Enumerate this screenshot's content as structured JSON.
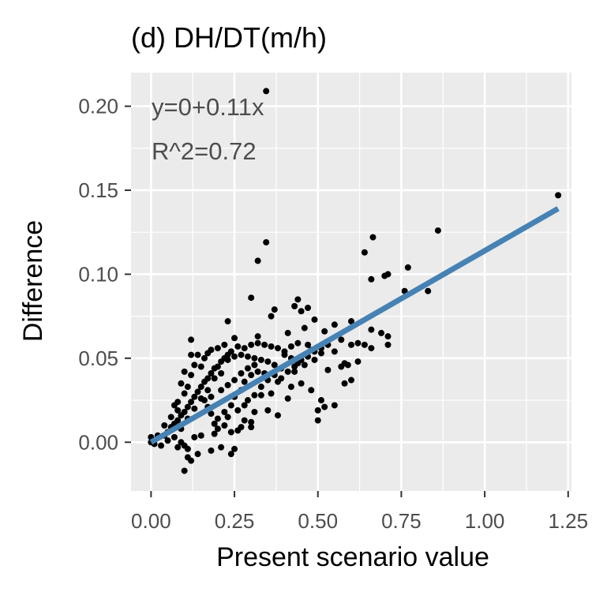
{
  "chart_data": {
    "type": "scatter",
    "title": "(d) DH/DT(m/h)",
    "xlabel": "Present scenario value",
    "ylabel": "Difference",
    "xlim": [
      -0.06,
      1.26
    ],
    "ylim": [
      -0.029,
      0.22
    ],
    "x_ticks": [
      0.0,
      0.25,
      0.5,
      0.75,
      1.0,
      1.25
    ],
    "x_tick_labels": [
      "0.00",
      "0.25",
      "0.50",
      "0.75",
      "1.00",
      "1.25"
    ],
    "y_ticks": [
      0.0,
      0.05,
      0.1,
      0.15,
      0.2
    ],
    "y_tick_labels": [
      "0.00",
      "0.05",
      "0.10",
      "0.15",
      "0.20"
    ],
    "grid": true,
    "annotations": [
      "y=0+0.11x",
      "R^2=0.72"
    ],
    "fit_line": {
      "intercept": 0.0,
      "slope": 0.114,
      "x_range": [
        0.0,
        1.22
      ],
      "color": "#4682b4"
    },
    "point_color": "#000000",
    "panel_color": "#ebebeb",
    "points": [
      [
        0.345,
        0.209
      ],
      [
        1.22,
        0.147
      ],
      [
        0.86,
        0.126
      ],
      [
        0.665,
        0.122
      ],
      [
        0.345,
        0.119
      ],
      [
        0.64,
        0.113
      ],
      [
        0.32,
        0.108
      ],
      [
        0.77,
        0.104
      ],
      [
        0.71,
        0.1
      ],
      [
        0.7,
        0.099
      ],
      [
        0.66,
        0.097
      ],
      [
        0.76,
        0.09
      ],
      [
        0.83,
        0.09
      ],
      [
        0.3,
        0.086
      ],
      [
        0.44,
        0.085
      ],
      [
        0.43,
        0.081
      ],
      [
        0.47,
        0.08
      ],
      [
        0.45,
        0.078
      ],
      [
        0.37,
        0.079
      ],
      [
        0.36,
        0.075
      ],
      [
        0.49,
        0.073
      ],
      [
        0.6,
        0.072
      ],
      [
        0.55,
        0.07
      ],
      [
        0.23,
        0.072
      ],
      [
        0.46,
        0.068
      ],
      [
        0.41,
        0.065
      ],
      [
        0.52,
        0.066
      ],
      [
        0.66,
        0.067
      ],
      [
        0.69,
        0.065
      ],
      [
        0.71,
        0.063
      ],
      [
        0.57,
        0.061
      ],
      [
        0.25,
        0.062
      ],
      [
        0.12,
        0.061
      ],
      [
        0.32,
        0.063
      ],
      [
        0.62,
        0.059
      ],
      [
        0.42,
        0.057
      ],
      [
        0.48,
        0.055
      ],
      [
        0.64,
        0.058
      ],
      [
        0.6,
        0.058
      ],
      [
        0.71,
        0.058
      ],
      [
        0.66,
        0.056
      ],
      [
        0.55,
        0.054
      ],
      [
        0.51,
        0.053
      ],
      [
        0.58,
        0.047
      ],
      [
        0.49,
        0.049
      ],
      [
        0.4,
        0.052
      ],
      [
        0.62,
        0.048
      ],
      [
        0.59,
        0.046
      ],
      [
        0.57,
        0.045
      ],
      [
        0.53,
        0.043
      ],
      [
        0.43,
        0.042
      ],
      [
        0.6,
        0.037
      ],
      [
        0.58,
        0.035
      ],
      [
        0.48,
        0.031
      ],
      [
        0.45,
        0.035
      ],
      [
        0.38,
        0.036
      ],
      [
        0.42,
        0.033
      ],
      [
        0.36,
        0.029
      ],
      [
        0.41,
        0.026
      ],
      [
        0.33,
        0.028
      ],
      [
        0.55,
        0.022
      ],
      [
        0.51,
        0.025
      ],
      [
        0.5,
        0.019
      ],
      [
        0.52,
        0.021
      ],
      [
        0.5,
        0.013
      ],
      [
        0.38,
        0.016
      ],
      [
        0.31,
        0.018
      ],
      [
        0.35,
        0.019
      ],
      [
        0.3,
        0.012
      ],
      [
        0.27,
        0.009
      ],
      [
        0.3,
        0.009
      ],
      [
        0.24,
        0.006
      ],
      [
        0.19,
        0.005
      ],
      [
        0.15,
        0.004
      ],
      [
        0.13,
        0.003
      ],
      [
        0.1,
        -0.002
      ],
      [
        0.09,
        0.0
      ],
      [
        0.08,
        -0.003
      ],
      [
        0.11,
        -0.004
      ],
      [
        0.18,
        -0.005
      ],
      [
        0.21,
        -0.003
      ],
      [
        0.25,
        -0.004
      ],
      [
        0.11,
        -0.009
      ],
      [
        0.24,
        -0.007
      ],
      [
        0.14,
        -0.007
      ],
      [
        0.1,
        -0.017
      ],
      [
        0.12,
        -0.011
      ],
      [
        0.03,
        -0.002
      ],
      [
        0.01,
        -0.001
      ],
      [
        0.0,
        0.0
      ],
      [
        0.0,
        0.003
      ],
      [
        0.02,
        0.004
      ],
      [
        0.04,
        0.004
      ],
      [
        0.05,
        0.006
      ],
      [
        0.06,
        0.009
      ],
      [
        0.07,
        0.011
      ],
      [
        0.08,
        0.013
      ],
      [
        0.09,
        0.016
      ],
      [
        0.1,
        0.018
      ],
      [
        0.11,
        0.021
      ],
      [
        0.12,
        0.024
      ],
      [
        0.13,
        0.027
      ],
      [
        0.14,
        0.03
      ],
      [
        0.15,
        0.033
      ],
      [
        0.16,
        0.036
      ],
      [
        0.17,
        0.038
      ],
      [
        0.18,
        0.041
      ],
      [
        0.19,
        0.044
      ],
      [
        0.2,
        0.045
      ],
      [
        0.21,
        0.048
      ],
      [
        0.22,
        0.05
      ],
      [
        0.23,
        0.052
      ],
      [
        0.24,
        0.054
      ],
      [
        0.26,
        0.057
      ],
      [
        0.28,
        0.056
      ],
      [
        0.3,
        0.058
      ],
      [
        0.32,
        0.059
      ],
      [
        0.34,
        0.058
      ],
      [
        0.36,
        0.057
      ],
      [
        0.38,
        0.056
      ],
      [
        0.4,
        0.054
      ],
      [
        0.42,
        0.05
      ],
      [
        0.44,
        0.047
      ],
      [
        0.46,
        0.046
      ],
      [
        0.39,
        0.044
      ],
      [
        0.37,
        0.046
      ],
      [
        0.35,
        0.048
      ],
      [
        0.33,
        0.049
      ],
      [
        0.31,
        0.05
      ],
      [
        0.29,
        0.051
      ],
      [
        0.27,
        0.052
      ],
      [
        0.25,
        0.051
      ],
      [
        0.23,
        0.049
      ],
      [
        0.21,
        0.041
      ],
      [
        0.19,
        0.038
      ],
      [
        0.17,
        0.031
      ],
      [
        0.15,
        0.026
      ],
      [
        0.13,
        0.02
      ],
      [
        0.11,
        0.014
      ],
      [
        0.09,
        0.008
      ],
      [
        0.07,
        0.003
      ],
      [
        0.05,
        0.001
      ],
      [
        0.15,
        0.045
      ],
      [
        0.16,
        0.05
      ],
      [
        0.13,
        0.046
      ],
      [
        0.14,
        0.052
      ],
      [
        0.18,
        0.055
      ],
      [
        0.2,
        0.056
      ],
      [
        0.22,
        0.058
      ],
      [
        0.17,
        0.053
      ],
      [
        0.12,
        0.04
      ],
      [
        0.11,
        0.033
      ],
      [
        0.1,
        0.029
      ],
      [
        0.08,
        0.024
      ],
      [
        0.09,
        0.035
      ],
      [
        0.12,
        0.052
      ],
      [
        0.1,
        0.042
      ],
      [
        0.22,
        0.01
      ],
      [
        0.2,
        0.008
      ],
      [
        0.23,
        0.015
      ],
      [
        0.26,
        0.019
      ],
      [
        0.28,
        0.022
      ],
      [
        0.29,
        0.025
      ],
      [
        0.31,
        0.028
      ],
      [
        0.33,
        0.033
      ],
      [
        0.35,
        0.037
      ],
      [
        0.34,
        0.041
      ],
      [
        0.32,
        0.042
      ],
      [
        0.3,
        0.04
      ],
      [
        0.28,
        0.036
      ],
      [
        0.27,
        0.031
      ],
      [
        0.25,
        0.027
      ],
      [
        0.24,
        0.022
      ],
      [
        0.22,
        0.018
      ],
      [
        0.2,
        0.014
      ],
      [
        0.19,
        0.011
      ],
      [
        0.18,
        0.017
      ],
      [
        0.17,
        0.021
      ],
      [
        0.16,
        0.025
      ],
      [
        0.18,
        0.027
      ],
      [
        0.21,
        0.031
      ],
      [
        0.23,
        0.034
      ],
      [
        0.25,
        0.037
      ],
      [
        0.27,
        0.041
      ],
      [
        0.29,
        0.044
      ],
      [
        0.31,
        0.046
      ],
      [
        0.37,
        0.04
      ],
      [
        0.39,
        0.038
      ],
      [
        0.41,
        0.042
      ],
      [
        0.43,
        0.045
      ],
      [
        0.45,
        0.049
      ],
      [
        0.47,
        0.051
      ],
      [
        0.49,
        0.054
      ],
      [
        0.51,
        0.056
      ],
      [
        0.53,
        0.058
      ],
      [
        0.44,
        0.059
      ],
      [
        0.47,
        0.058
      ],
      [
        0.28,
        0.013
      ],
      [
        0.26,
        0.007
      ],
      [
        0.06,
        0.015
      ],
      [
        0.04,
        0.01
      ],
      [
        0.08,
        0.019
      ],
      [
        0.07,
        0.022
      ]
    ]
  }
}
